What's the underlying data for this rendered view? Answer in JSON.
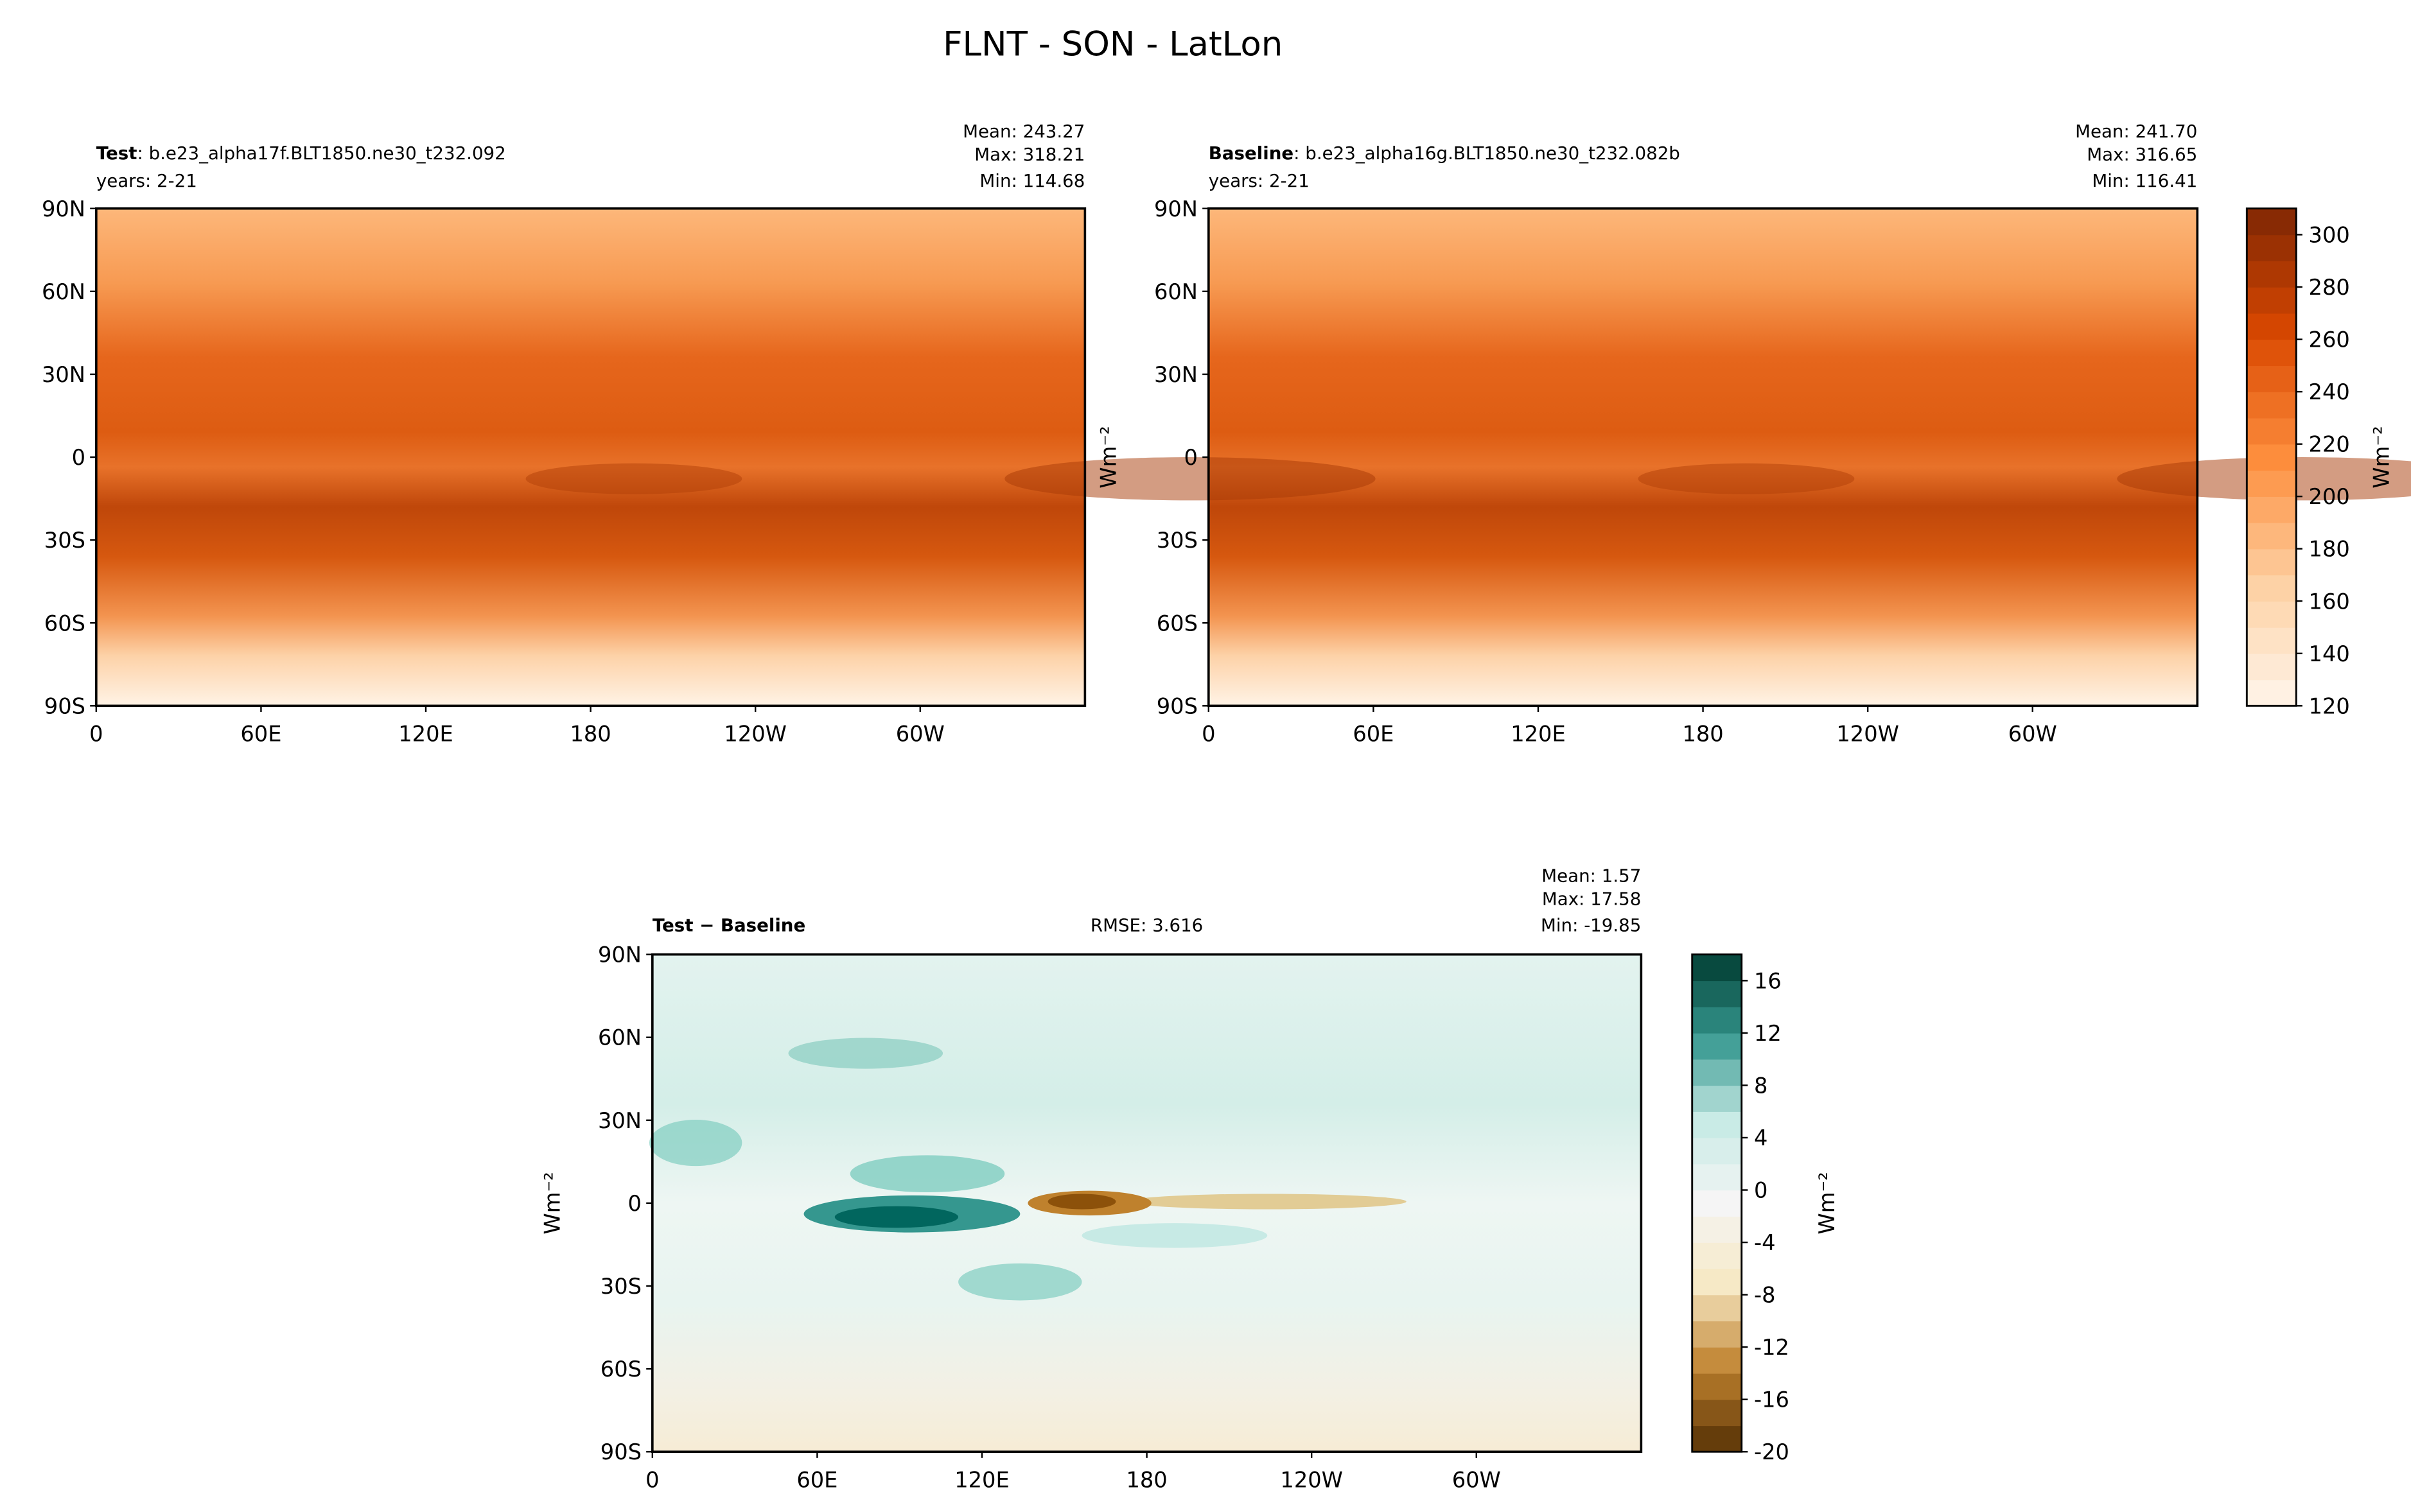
{
  "title": "FLNT - SON - LatLon",
  "chart_data": [
    {
      "type": "map",
      "title_bold": "Test",
      "title": ": b.e23_alpha17f.BLT1850.ne30_t232.092",
      "subtitle": "years: 2-21",
      "stats": [
        "Mean: 243.27",
        "Max: 318.21",
        "Min: 114.68"
      ],
      "xlim": [
        0,
        360
      ],
      "ylim": [
        -90,
        90
      ],
      "xticks": [
        0,
        {
          "value": 60,
          "label": "60E"
        },
        {
          "value": 120,
          "label": "120E"
        },
        180,
        {
          "value": 240,
          "label": "120W"
        },
        {
          "value": 300,
          "label": "60W"
        }
      ],
      "yticks": [
        {
          "value": -90,
          "label": "90S"
        },
        {
          "value": -60,
          "label": "60S"
        },
        {
          "value": -30,
          "label": "30S"
        },
        0,
        {
          "value": 30,
          "label": "30N"
        },
        {
          "value": 60,
          "label": "60N"
        },
        {
          "value": 90,
          "label": "90N"
        }
      ]
    },
    {
      "type": "map",
      "title_bold": "Baseline",
      "title": ": b.e23_alpha16g.BLT1850.ne30_t232.082b",
      "subtitle": "years: 2-21",
      "stats": [
        "Mean: 241.70",
        "Max: 316.65",
        "Min: 116.41"
      ],
      "ylabel": "Wm⁻²",
      "xlim": [
        0,
        360
      ],
      "ylim": [
        -90,
        90
      ],
      "xticks": [
        0,
        {
          "value": 60,
          "label": "60E"
        },
        {
          "value": 120,
          "label": "120E"
        },
        180,
        {
          "value": 240,
          "label": "120W"
        },
        {
          "value": 300,
          "label": "60W"
        }
      ],
      "yticks": [
        {
          "value": -90,
          "label": "90S"
        },
        {
          "value": -60,
          "label": "60S"
        },
        {
          "value": -30,
          "label": "30S"
        },
        0,
        {
          "value": 30,
          "label": "30N"
        },
        {
          "value": 60,
          "label": "60N"
        },
        {
          "value": 90,
          "label": "90N"
        }
      ]
    },
    {
      "type": "colorbar",
      "label": "Wm⁻²",
      "ylim": [
        120,
        310
      ],
      "yticks": [
        120,
        140,
        160,
        180,
        200,
        220,
        240,
        260,
        280,
        300
      ],
      "levels": [
        120,
        130,
        140,
        150,
        160,
        170,
        180,
        190,
        200,
        210,
        220,
        230,
        240,
        250,
        260,
        270,
        280,
        290,
        300,
        310
      ],
      "cmap": [
        "#fff5eb",
        "#fdd0a2",
        "#fd8d3c",
        "#d94801",
        "#7f2704"
      ]
    },
    {
      "type": "map",
      "title_bold": "Test − Baseline",
      "rmse": "RMSE: 3.616",
      "stats": [
        "Mean:  1.57",
        "Max: 17.58",
        "Min: -19.85"
      ],
      "ylabel": "Wm⁻²",
      "xlim": [
        0,
        360
      ],
      "ylim": [
        -90,
        90
      ],
      "xticks": [
        0,
        {
          "value": 60,
          "label": "60E"
        },
        {
          "value": 120,
          "label": "120E"
        },
        180,
        {
          "value": 240,
          "label": "120W"
        },
        {
          "value": 300,
          "label": "60W"
        }
      ],
      "yticks": [
        {
          "value": -90,
          "label": "90S"
        },
        {
          "value": -60,
          "label": "60S"
        },
        {
          "value": -30,
          "label": "30S"
        },
        0,
        {
          "value": 30,
          "label": "30N"
        },
        {
          "value": 60,
          "label": "60N"
        },
        {
          "value": 90,
          "label": "90N"
        }
      ]
    },
    {
      "type": "colorbar",
      "label": "Wm⁻²",
      "ylim": [
        -20,
        18
      ],
      "yticks": [
        -20,
        -16,
        -12,
        -8,
        -4,
        0,
        4,
        8,
        12,
        16
      ],
      "levels": [
        -20,
        -18,
        -16,
        -14,
        -12,
        -10,
        -8,
        -6,
        -4,
        -2,
        0,
        2,
        4,
        6,
        8,
        10,
        12,
        14,
        16,
        18
      ],
      "cmap": [
        "#543005",
        "#bf812d",
        "#f6e8c3",
        "#f5f5f5",
        "#c7eae5",
        "#35978f",
        "#003c30"
      ]
    }
  ]
}
